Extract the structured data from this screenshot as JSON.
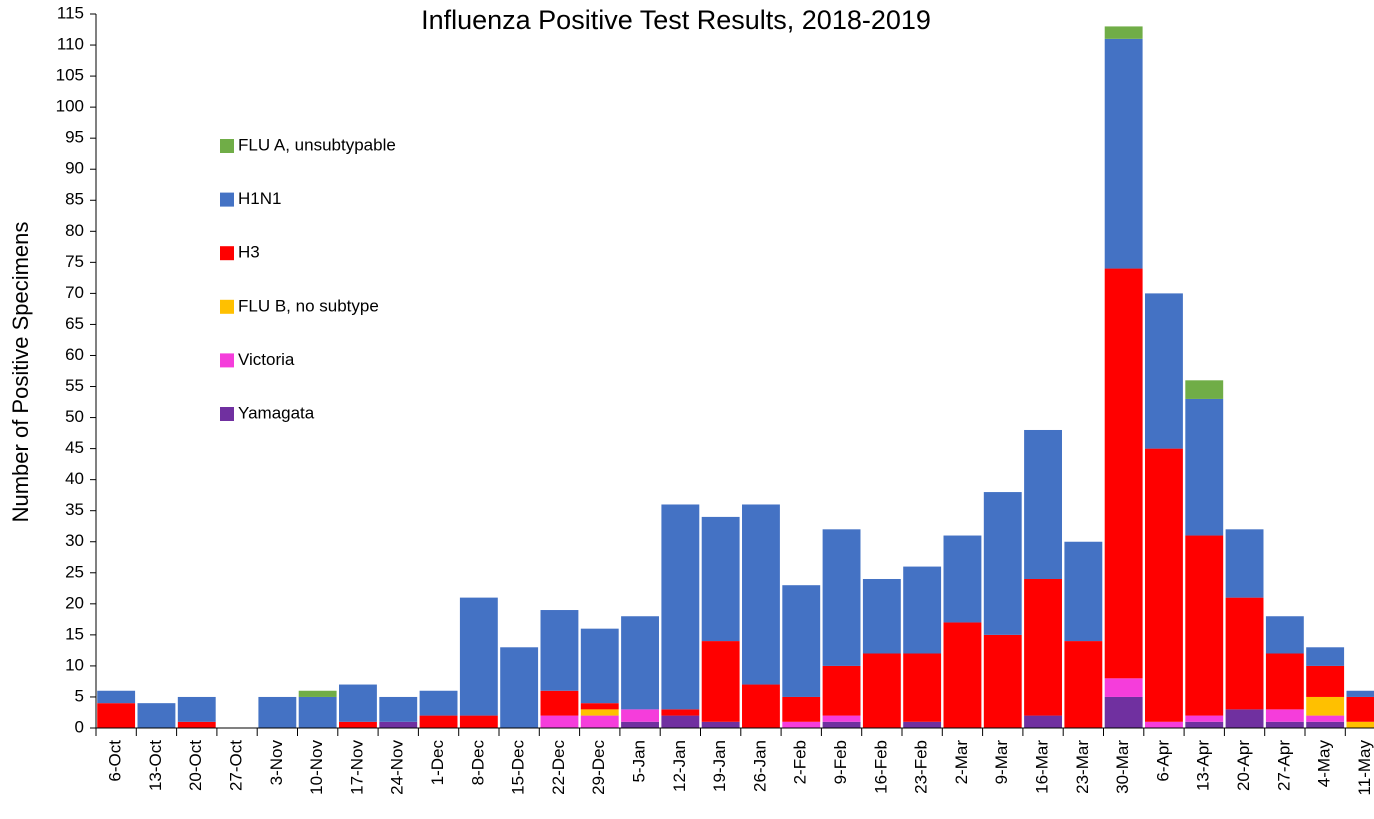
{
  "chart_data": {
    "type": "stacked_bar",
    "title": "Influenza Positive Test Results, 2018-2019",
    "y_label": "Number of Positive Specimens",
    "categories": [
      "6-Oct",
      "13-Oct",
      "20-Oct",
      "27-Oct",
      "3-Nov",
      "10-Nov",
      "17-Nov",
      "24-Nov",
      "1-Dec",
      "8-Dec",
      "15-Dec",
      "22-Dec",
      "29-Dec",
      "5-Jan",
      "12-Jan",
      "19-Jan",
      "26-Jan",
      "2-Feb",
      "9-Feb",
      "16-Feb",
      "23-Feb",
      "2-Mar",
      "9-Mar",
      "16-Mar",
      "23-Mar",
      "30-Mar",
      "6-Apr",
      "13-Apr",
      "20-Apr",
      "27-Apr",
      "4-May",
      "11-May"
    ],
    "series": [
      {
        "name": "Yamagata",
        "color": "#7030a0",
        "values": [
          0,
          0,
          0,
          0,
          0,
          0,
          0,
          1,
          0,
          0,
          0,
          0,
          0,
          1,
          2,
          1,
          0,
          0,
          1,
          0,
          1,
          0,
          0,
          2,
          0,
          5,
          0,
          1,
          3,
          1,
          1,
          0
        ]
      },
      {
        "name": "Victoria",
        "color": "#f53ddb",
        "values": [
          0,
          0,
          0,
          0,
          0,
          0,
          0,
          0,
          0,
          0,
          0,
          2,
          2,
          2,
          0,
          0,
          0,
          1,
          1,
          0,
          0,
          0,
          0,
          0,
          0,
          3,
          1,
          1,
          0,
          2,
          1,
          0
        ]
      },
      {
        "name": "FLU B, no subtype",
        "color": "#ffc000",
        "values": [
          0,
          0,
          0,
          0,
          0,
          0,
          0,
          0,
          0,
          0,
          0,
          0,
          1,
          0,
          0,
          0,
          0,
          0,
          0,
          0,
          0,
          0,
          0,
          0,
          0,
          0,
          0,
          0,
          0,
          0,
          3,
          1
        ]
      },
      {
        "name": "H3",
        "color": "#ff0000",
        "values": [
          4,
          0,
          1,
          0,
          0,
          0,
          1,
          0,
          2,
          2,
          0,
          4,
          1,
          0,
          1,
          13,
          7,
          4,
          8,
          12,
          11,
          17,
          15,
          22,
          14,
          66,
          44,
          29,
          18,
          9,
          5,
          4
        ]
      },
      {
        "name": "H1N1",
        "color": "#4472c4",
        "values": [
          2,
          4,
          4,
          0,
          5,
          5,
          6,
          4,
          4,
          19,
          13,
          13,
          12,
          15,
          33,
          20,
          29,
          18,
          22,
          12,
          14,
          14,
          23,
          24,
          16,
          37,
          25,
          22,
          11,
          6,
          3,
          1
        ]
      },
      {
        "name": "FLU A, unsubtypable",
        "color": "#70ad47",
        "values": [
          0,
          0,
          0,
          0,
          0,
          1,
          0,
          0,
          0,
          0,
          0,
          0,
          0,
          0,
          0,
          0,
          0,
          0,
          0,
          0,
          0,
          0,
          0,
          0,
          0,
          2,
          0,
          3,
          0,
          0,
          0,
          0
        ]
      }
    ],
    "ylim": [
      0,
      115
    ],
    "yticks": [
      0,
      5,
      10,
      15,
      20,
      25,
      30,
      35,
      40,
      45,
      50,
      55,
      60,
      65,
      70,
      75,
      80,
      85,
      90,
      95,
      100,
      105,
      110,
      115
    ]
  }
}
